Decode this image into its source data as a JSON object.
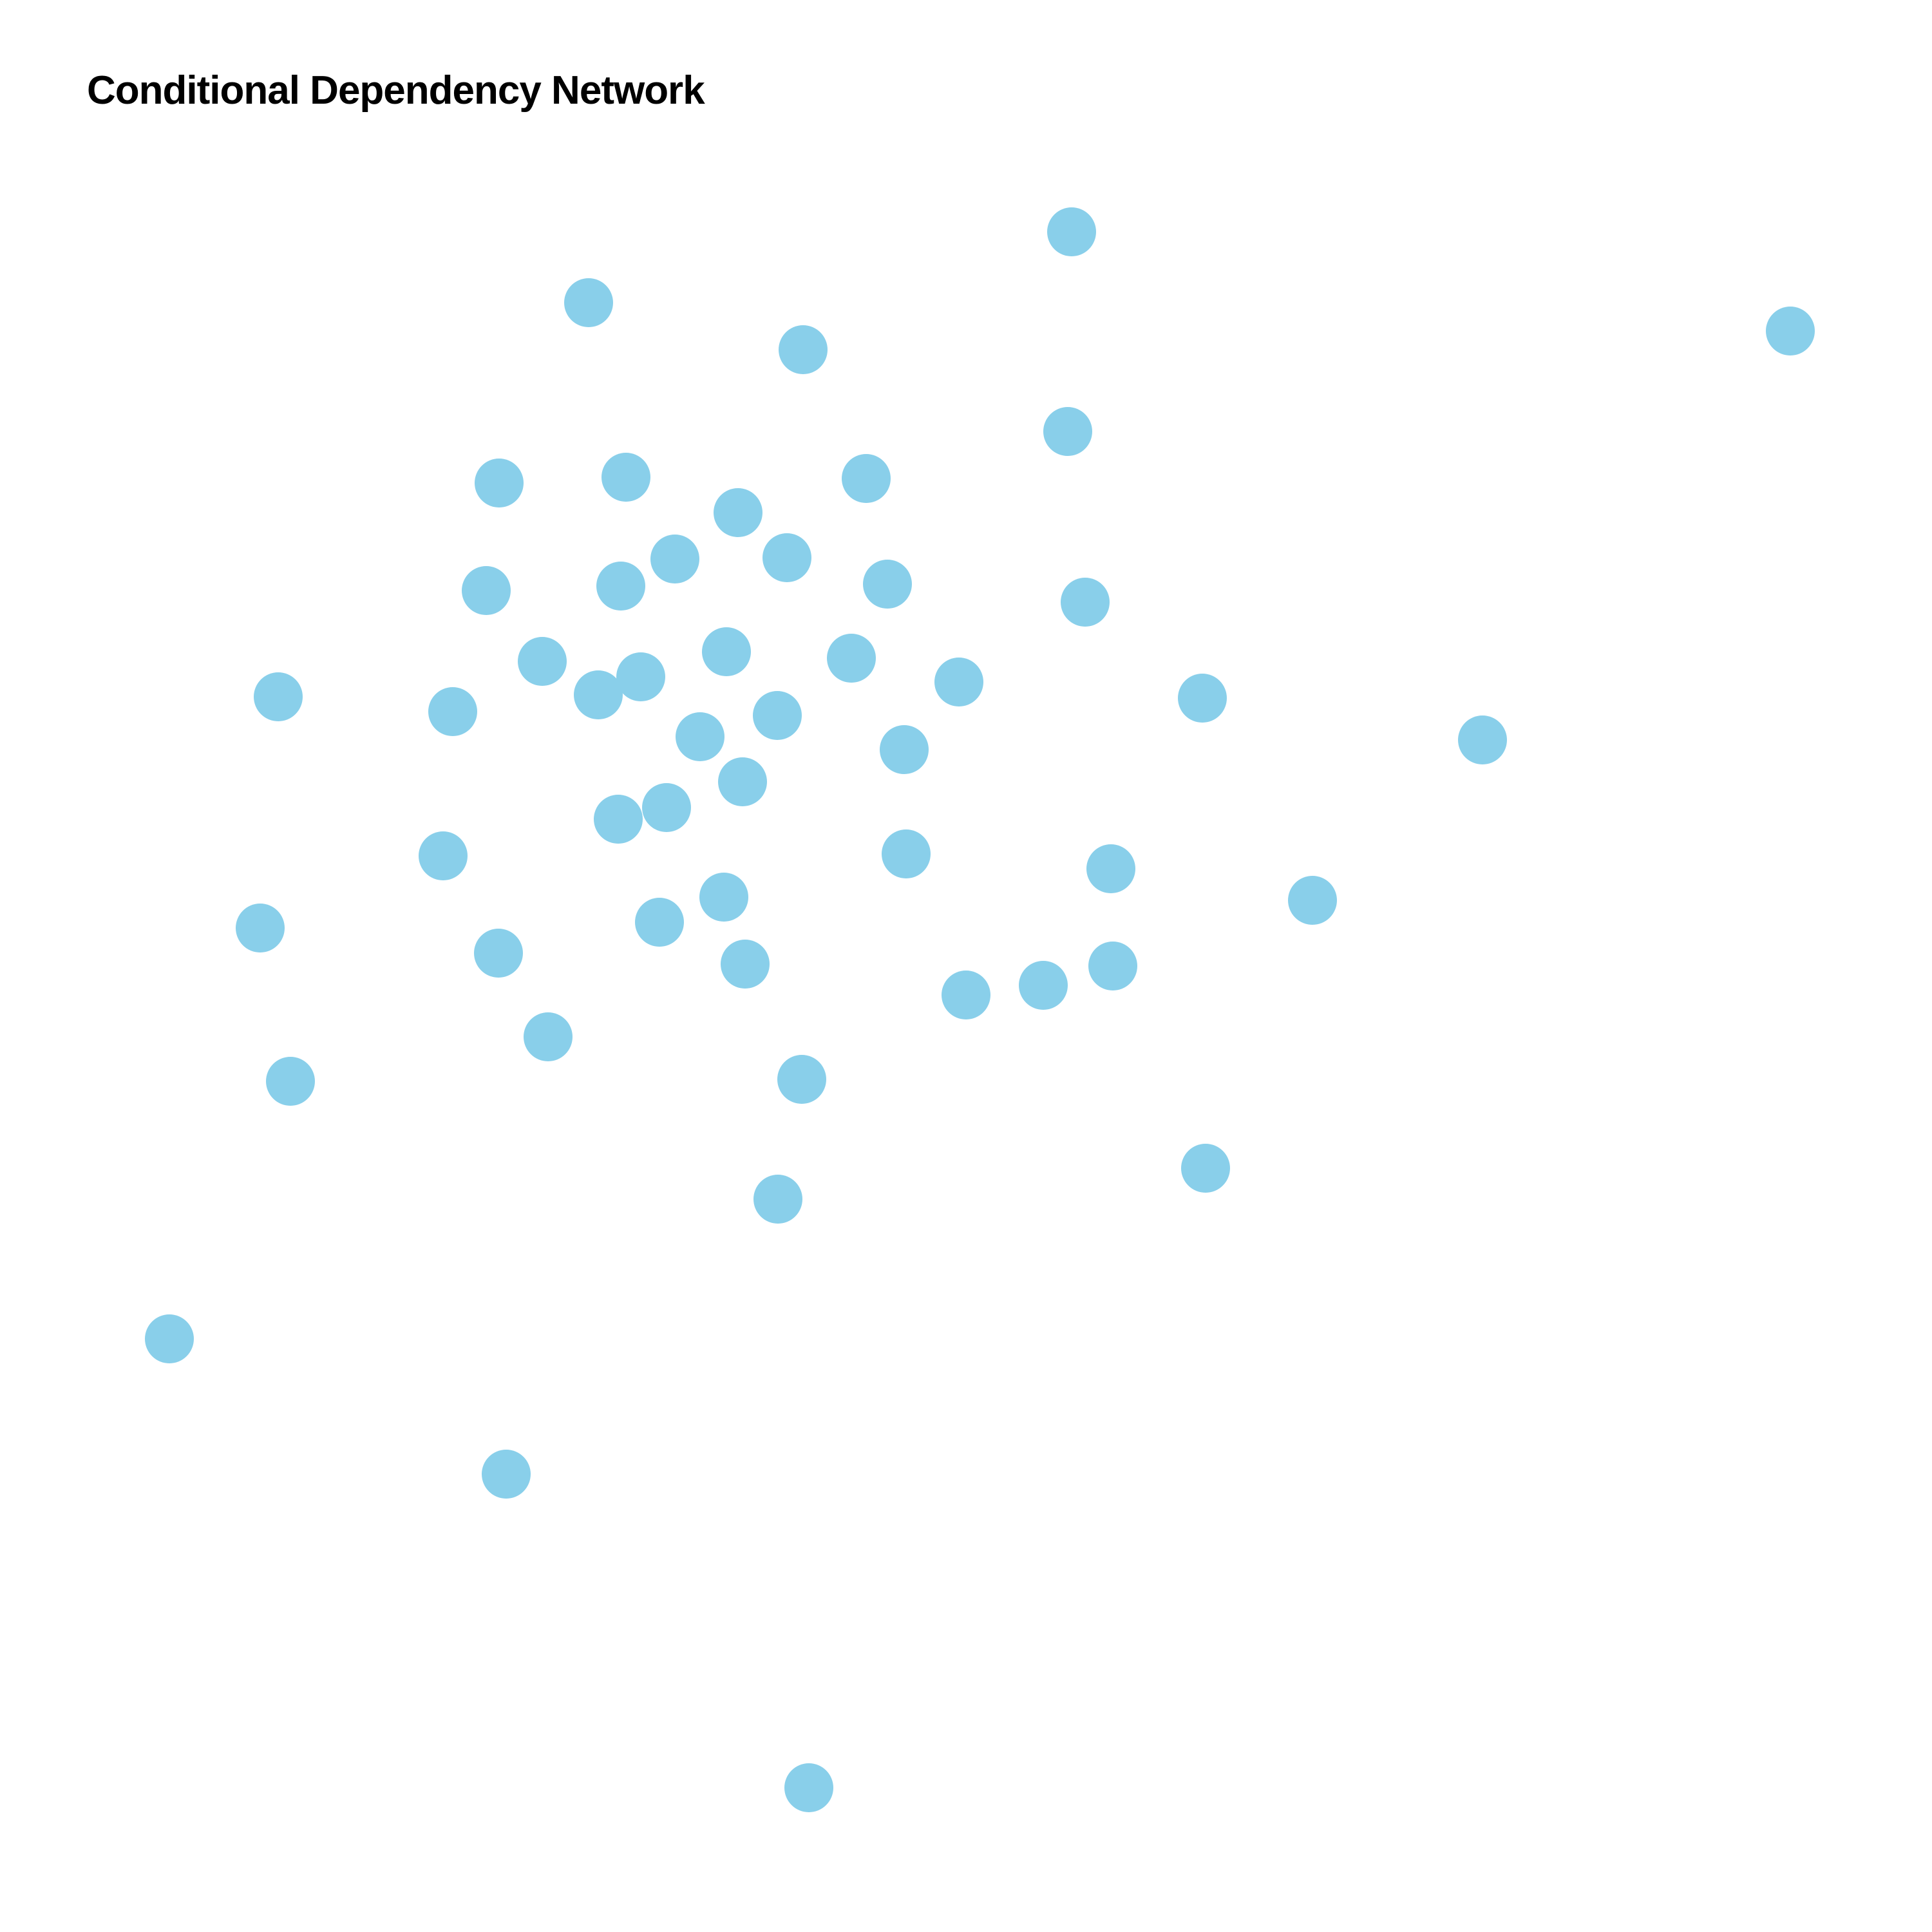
{
  "title": "Conditional Dependency Network",
  "node_color": "#89CFEA",
  "node_count": 55,
  "edges_visible": false,
  "node_labels_visible": false
}
